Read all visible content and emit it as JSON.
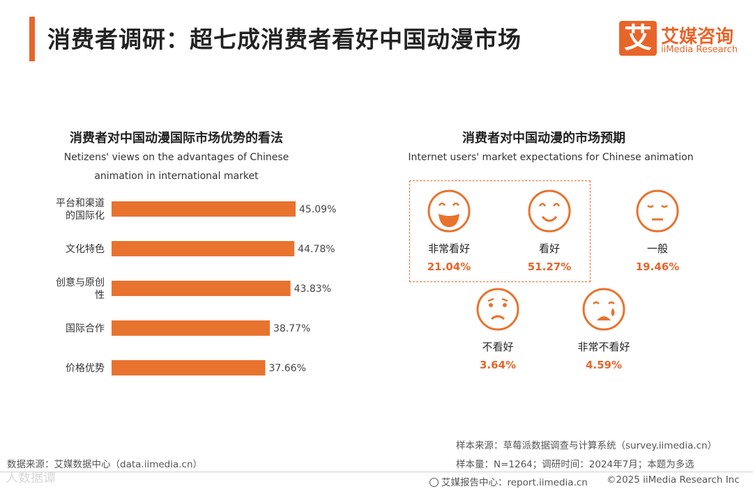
{
  "header": {
    "title": "消费者调研：超七成消费者看好中国动漫市场",
    "logo_mark": "艾",
    "logo_cn": "艾媒咨询",
    "logo_en": "iiMedia Research"
  },
  "left_chart": {
    "title": "消费者对中国动漫国际市场优势的看法",
    "subtitle_line1": "Netizens' views on the advantages of Chinese",
    "subtitle_line2": "animation in international market"
  },
  "right_chart": {
    "title": "消费者对中国动漫的市场预期",
    "subtitle": "Internet users' market expectations for Chinese animation",
    "items": [
      {
        "label": "非常看好",
        "value": "21.04%"
      },
      {
        "label": "看好",
        "value": "51.27%"
      },
      {
        "label": "一般",
        "value": "19.46%"
      },
      {
        "label": "不看好",
        "value": "3.64%"
      },
      {
        "label": "非常不看好",
        "value": "4.59%"
      }
    ]
  },
  "chart_data": [
    {
      "type": "bar",
      "orientation": "horizontal",
      "title": "消费者对中国动漫国际市场优势的看法",
      "subtitle": "Netizens' views on the advantages of Chinese animation in international market",
      "categories": [
        [
          "平台和渠道",
          "的国际化"
        ],
        [
          "文化特色"
        ],
        [
          "创意与原创",
          "性"
        ],
        [
          "国际合作"
        ],
        [
          "价格优势"
        ]
      ],
      "values": [
        45.09,
        44.78,
        43.83,
        38.77,
        37.66
      ],
      "value_labels": [
        "45.09%",
        "44.78%",
        "43.83%",
        "38.77%",
        "37.66%"
      ],
      "bar_color": "#e8732e",
      "xlim": [
        0,
        50
      ]
    },
    {
      "type": "pictogram",
      "title": "消费者对中国动漫的市场预期",
      "subtitle": "Internet users' market expectations for Chinese animation",
      "categories": [
        "非常看好",
        "看好",
        "一般",
        "不看好",
        "非常不看好"
      ],
      "values": [
        21.04,
        51.27,
        19.46,
        3.64,
        4.59
      ],
      "unit": "%"
    }
  ],
  "footer": {
    "source_left": "数据来源：艾媒数据中心（data.iimedia.cn）",
    "sample_source": "样本来源：草莓派数据调查与计算系统（survey.iimedia.cn）",
    "sample_info": "样本量：N=1264；调研时间：2024年7月；本题为多选",
    "report_center": "艾媒报告中心：report.iimedia.cn",
    "copyright": "©2025  iiMedia Research  Inc",
    "watermark": "人数据谭"
  },
  "colors": {
    "accent": "#e8652a",
    "bar": "#e8732e",
    "text": "#333333"
  }
}
